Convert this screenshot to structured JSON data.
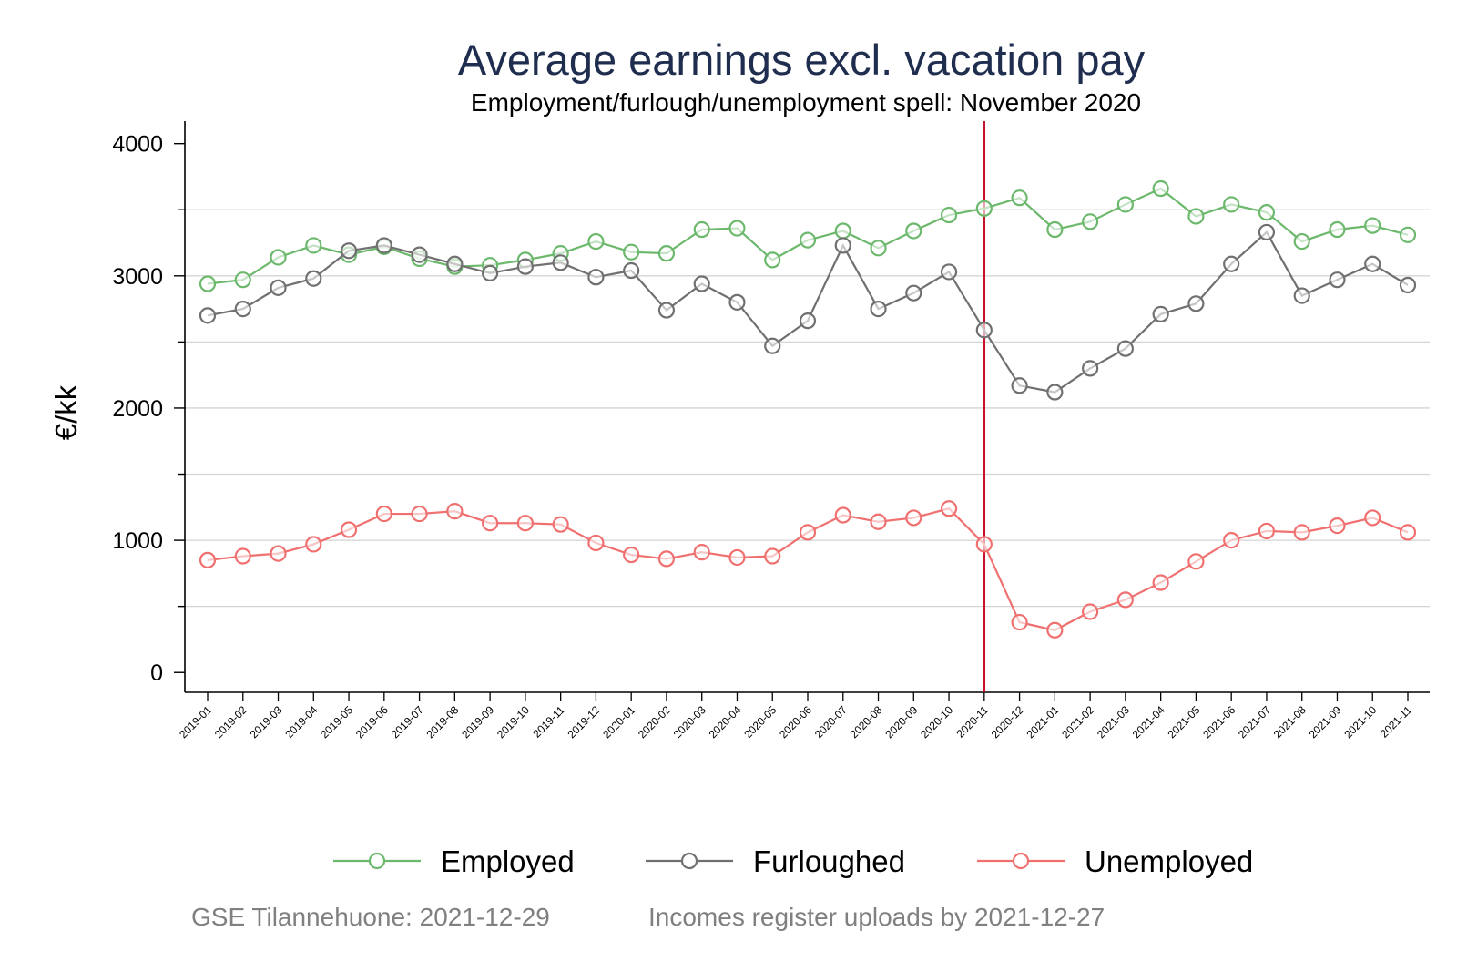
{
  "chart_data": {
    "type": "line",
    "title": "Average earnings excl. vacation pay",
    "subtitle": "Employment/furlough/unemployment spell: November 2020",
    "ylabel": "€/kk",
    "xlabel": "",
    "ylim": [
      -150,
      4170
    ],
    "yticks": [
      0,
      1000,
      2000,
      3000,
      4000
    ],
    "ytick_labels": [
      "0",
      "1000",
      "2000",
      "3000",
      "4000"
    ],
    "grid": true,
    "legend_position": "bottom",
    "reference_line": {
      "x": "2020-11",
      "color": "#c8102e"
    },
    "categories": [
      "2019-01",
      "2019-02",
      "2019-03",
      "2019-04",
      "2019-05",
      "2019-06",
      "2019-07",
      "2019-08",
      "2019-09",
      "2019-10",
      "2019-11",
      "2019-12",
      "2020-01",
      "2020-02",
      "2020-03",
      "2020-04",
      "2020-05",
      "2020-06",
      "2020-07",
      "2020-08",
      "2020-09",
      "2020-10",
      "2020-11",
      "2020-12",
      "2021-01",
      "2021-02",
      "2021-03",
      "2021-04",
      "2021-05",
      "2021-06",
      "2021-07",
      "2021-08",
      "2021-09",
      "2021-10",
      "2021-11"
    ],
    "series": [
      {
        "name": "Employed",
        "color": "#6cb86c",
        "values": [
          2940,
          2970,
          3140,
          3230,
          3160,
          3220,
          3130,
          3070,
          3080,
          3120,
          3170,
          3260,
          3180,
          3170,
          3350,
          3360,
          3120,
          3270,
          3340,
          3210,
          3340,
          3460,
          3510,
          3590,
          3350,
          3410,
          3540,
          3660,
          3450,
          3540,
          3480,
          3260,
          3350,
          3380,
          3310
        ]
      },
      {
        "name": "Furloughed",
        "color": "#707070",
        "values": [
          2700,
          2750,
          2910,
          2980,
          3190,
          3230,
          3160,
          3090,
          3020,
          3070,
          3100,
          2990,
          3040,
          2740,
          2940,
          2800,
          2470,
          2660,
          3230,
          2750,
          2870,
          3030,
          2590,
          2170,
          2120,
          2300,
          2450,
          2710,
          2790,
          3090,
          3330,
          2850,
          2970,
          3090,
          2930
        ]
      },
      {
        "name": "Unemployed",
        "color": "#f07070",
        "values": [
          850,
          880,
          900,
          970,
          1080,
          1200,
          1200,
          1220,
          1130,
          1130,
          1120,
          980,
          890,
          860,
          910,
          870,
          880,
          1060,
          1190,
          1140,
          1170,
          1240,
          970,
          380,
          320,
          460,
          550,
          680,
          840,
          1000,
          1070,
          1060,
          1110,
          1170,
          1060
        ]
      }
    ]
  },
  "footer": {
    "left": "GSE Tilannehuone: 2021-12-29",
    "right": "Incomes register uploads by 2021-12-27"
  }
}
